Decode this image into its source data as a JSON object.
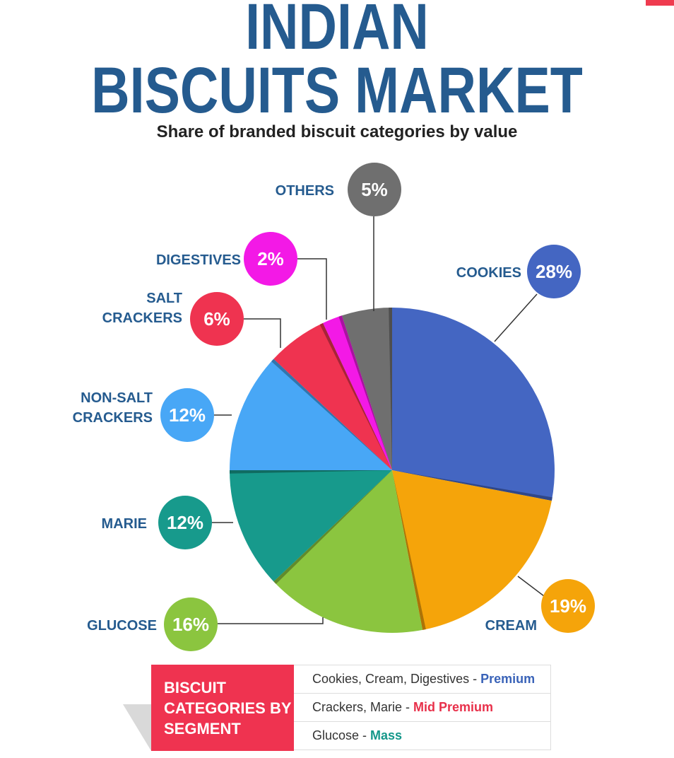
{
  "title_line1": "INDIAN",
  "title_line2": "BISCUITS MARKET",
  "subtitle": "Share of branded biscuit categories by value",
  "chart_data": {
    "type": "pie",
    "unit": "%",
    "slices": [
      {
        "label_lines": [
          "COOKIES"
        ],
        "value": 28,
        "text": "28%",
        "color": "#4466c2"
      },
      {
        "label_lines": [
          "CREAM"
        ],
        "value": 19,
        "text": "19%",
        "color": "#f5a40a"
      },
      {
        "label_lines": [
          "GLUCOSE"
        ],
        "value": 16,
        "text": "16%",
        "color": "#8bc53f"
      },
      {
        "label_lines": [
          "MARIE"
        ],
        "value": 12,
        "text": "12%",
        "color": "#179a8c"
      },
      {
        "label_lines": [
          "NON-SALT",
          "CRACKERS"
        ],
        "value": 12,
        "text": "12%",
        "color": "#48a7f6"
      },
      {
        "label_lines": [
          "SALT",
          "CRACKERS"
        ],
        "value": 6,
        "text": "6%",
        "color": "#ef3350"
      },
      {
        "label_lines": [
          "DIGESTIVES"
        ],
        "value": 2,
        "text": "2%",
        "color": "#f319e6"
      },
      {
        "label_lines": [
          "OTHERS"
        ],
        "value": 5,
        "text": "5%",
        "color": "#6f6f6f"
      }
    ]
  },
  "legend": {
    "heading_lines": [
      "BISCUIT",
      "CATEGORIES BY",
      "SEGMENT"
    ],
    "rows": [
      {
        "text": "Cookies, Cream, Digestives - ",
        "segment": "Premium",
        "segment_color": "#3a63b8"
      },
      {
        "text": "Crackers, Marie - ",
        "segment": "Mid Premium",
        "segment_color": "#e8304a"
      },
      {
        "text": "Glucose - ",
        "segment": "Mass",
        "segment_color": "#14978a"
      }
    ]
  }
}
